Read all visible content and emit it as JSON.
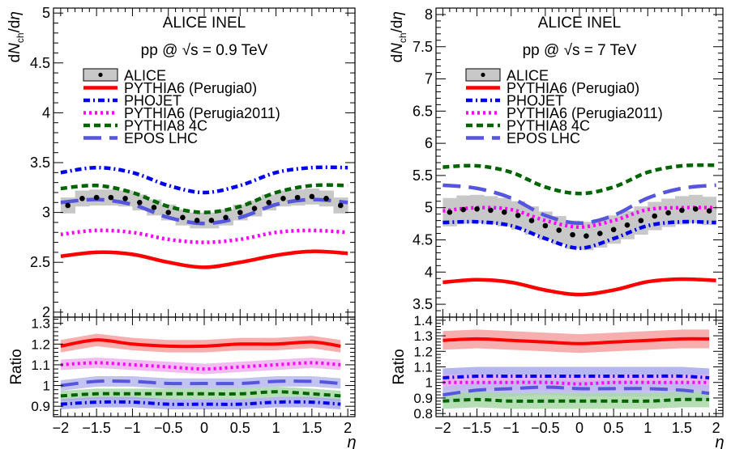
{
  "chart_data": [
    {
      "type": "line",
      "id": "left",
      "header": [
        "ALICE INEL",
        "pp @ √s = 0.9 TeV"
      ],
      "ylabel": "dNch/dη",
      "xlabel": "η",
      "xlim": [
        -2.1,
        2.1
      ],
      "ylim": [
        1.95,
        5.05
      ],
      "ratio_ylim": [
        0.85,
        1.33
      ],
      "ratio_ylabel": "Ratio",
      "xticks": [
        "−2",
        "−1.5",
        "−1",
        "−0.5",
        "0",
        "0.5",
        "1",
        "1.5",
        "2"
      ],
      "xtick_values": [
        -2,
        -1.5,
        -1,
        -0.5,
        0,
        0.5,
        1,
        1.5,
        2
      ],
      "yticks": [
        "2",
        "2.5",
        "3",
        "3.5",
        "4",
        "4.5",
        "5"
      ],
      "ytick_values": [
        2,
        2.5,
        3,
        3.5,
        4,
        4.5,
        5
      ],
      "ratio_yticks": [
        "0.9",
        "1",
        "1.1",
        "1.2",
        "1.3"
      ],
      "ratio_ytick_values": [
        0.9,
        1.0,
        1.1,
        1.2,
        1.3
      ],
      "legend": [
        "ALICE",
        "PYTHIA6 (Perugia0)",
        "PHOJET",
        "PYTHIA6 (Perugia2011)",
        "PYTHIA8 4C",
        "EPOS LHC"
      ],
      "data": {
        "x": [
          -1.9,
          -1.7,
          -1.5,
          -1.3,
          -1.1,
          -0.9,
          -0.7,
          -0.5,
          -0.3,
          -0.1,
          0.1,
          0.3,
          0.5,
          0.7,
          0.9,
          1.1,
          1.3,
          1.5,
          1.7,
          1.9
        ],
        "y": [
          3.07,
          3.14,
          3.15,
          3.15,
          3.14,
          3.1,
          3.05,
          3.0,
          2.95,
          2.92,
          2.92,
          2.95,
          3.0,
          3.04,
          3.1,
          3.14,
          3.15,
          3.16,
          3.14,
          3.07
        ],
        "err": 0.08
      },
      "series": [
        {
          "name": "PYTHIA6 (Perugia0)",
          "color": "#ff0000",
          "style": "solid",
          "x": [
            -2,
            -1.5,
            -1,
            -0.5,
            0,
            0.5,
            1,
            1.5,
            2
          ],
          "y": [
            2.56,
            2.6,
            2.58,
            2.5,
            2.45,
            2.5,
            2.57,
            2.61,
            2.59
          ]
        },
        {
          "name": "PHOJET",
          "color": "#0000ee",
          "style": "dashdot",
          "x": [
            -2,
            -1.5,
            -1,
            -0.5,
            0,
            0.5,
            1,
            1.5,
            2
          ],
          "y": [
            3.4,
            3.45,
            3.4,
            3.27,
            3.2,
            3.27,
            3.4,
            3.45,
            3.45
          ]
        },
        {
          "name": "PYTHIA6 (Perugia2011)",
          "color": "#ff00ff",
          "style": "dotted",
          "x": [
            -2,
            -1.5,
            -1,
            -0.5,
            0,
            0.5,
            1,
            1.5,
            2
          ],
          "y": [
            2.78,
            2.82,
            2.8,
            2.73,
            2.7,
            2.73,
            2.8,
            2.82,
            2.8
          ]
        },
        {
          "name": "PYTHIA8 4C",
          "color": "#006400",
          "style": "dashed",
          "x": [
            -2,
            -1.5,
            -1,
            -0.5,
            0,
            0.5,
            1,
            1.5,
            2
          ],
          "y": [
            3.24,
            3.27,
            3.2,
            3.06,
            3.0,
            3.06,
            3.2,
            3.27,
            3.27
          ]
        },
        {
          "name": "EPOS LHC",
          "color": "#5555dd",
          "style": "longdash",
          "x": [
            -2,
            -1.5,
            -1,
            -0.5,
            0,
            0.5,
            1,
            1.5,
            2
          ],
          "y": [
            3.1,
            3.13,
            3.08,
            2.95,
            2.89,
            2.95,
            3.08,
            3.13,
            3.1
          ]
        }
      ],
      "ratios": [
        {
          "name": "PYTHIA6 (Perugia0)",
          "color": "#ff0000",
          "band": "#f4a0a0",
          "style": "solid",
          "x": [
            -2,
            -1.5,
            -1,
            -0.5,
            0,
            0.5,
            1,
            1.5,
            1.9
          ],
          "y": [
            1.19,
            1.22,
            1.2,
            1.19,
            1.19,
            1.2,
            1.2,
            1.21,
            1.19
          ],
          "err": 0.03
        },
        {
          "name": "PYTHIA6 (Perugia2011)",
          "color": "#ff00ff",
          "band": "#f0b0f0",
          "style": "dotted",
          "x": [
            -2,
            -1.5,
            -1,
            -0.5,
            0,
            0.5,
            1,
            1.5,
            1.9
          ],
          "y": [
            1.1,
            1.11,
            1.1,
            1.09,
            1.08,
            1.09,
            1.1,
            1.11,
            1.1
          ],
          "err": 0.025
        },
        {
          "name": "EPOS LHC",
          "color": "#5555dd",
          "band": "#b8b8ee",
          "style": "longdash",
          "x": [
            -2,
            -1.5,
            -1,
            -0.5,
            0,
            0.5,
            1,
            1.5,
            1.9
          ],
          "y": [
            1.0,
            1.02,
            1.02,
            1.01,
            1.01,
            1.01,
            1.02,
            1.02,
            1.01
          ],
          "err": 0.025
        },
        {
          "name": "PYTHIA8 4C",
          "color": "#006400",
          "band": "#a8d8a8",
          "style": "dashed",
          "x": [
            -2,
            -1.5,
            -1,
            -0.5,
            0,
            0.5,
            1,
            1.5,
            1.9
          ],
          "y": [
            0.95,
            0.96,
            0.96,
            0.96,
            0.96,
            0.96,
            0.97,
            0.96,
            0.95
          ],
          "err": 0.025
        },
        {
          "name": "PHOJET",
          "color": "#0000ee",
          "band": "#a8a8ee",
          "style": "dashdot",
          "x": [
            -2,
            -1.5,
            -1,
            -0.5,
            0,
            0.5,
            1,
            1.5,
            1.9
          ],
          "y": [
            0.91,
            0.92,
            0.92,
            0.91,
            0.91,
            0.91,
            0.92,
            0.92,
            0.91
          ],
          "err": 0.025
        }
      ]
    },
    {
      "type": "line",
      "id": "right",
      "header": [
        "ALICE INEL",
        "pp @ √s = 7 TeV"
      ],
      "ylabel": "dNch/dη",
      "xlabel": "η",
      "xlim": [
        -2.1,
        2.1
      ],
      "ylim": [
        3.3,
        8.1
      ],
      "ratio_ylim": [
        0.78,
        1.42
      ],
      "ratio_ylabel": "Ratio",
      "xticks": [
        "−2",
        "−1.5",
        "−1",
        "−0.5",
        "0",
        "0.5",
        "1",
        "1.5",
        "2"
      ],
      "xtick_values": [
        -2,
        -1.5,
        -1,
        -0.5,
        0,
        0.5,
        1,
        1.5,
        2
      ],
      "yticks": [
        "3.5",
        "4",
        "4.5",
        "5",
        "5.5",
        "6",
        "6.5",
        "7",
        "7.5",
        "8"
      ],
      "ytick_values": [
        3.5,
        4,
        4.5,
        5,
        5.5,
        6,
        6.5,
        7,
        7.5,
        8
      ],
      "ratio_yticks": [
        "0.8",
        "0.9",
        "1",
        "1.1",
        "1.2",
        "1.3",
        "1.4"
      ],
      "ratio_ytick_values": [
        0.8,
        0.9,
        1.0,
        1.1,
        1.2,
        1.3,
        1.4
      ],
      "legend": [
        "ALICE",
        "PYTHIA6 (Perugia0)",
        "PHOJET",
        "PYTHIA6 (Perugia2011)",
        "PYTHIA8 4C",
        "EPOS LHC"
      ],
      "data": {
        "x": [
          -1.9,
          -1.7,
          -1.5,
          -1.3,
          -1.1,
          -0.9,
          -0.7,
          -0.5,
          -0.3,
          -0.1,
          0.1,
          0.3,
          0.5,
          0.7,
          0.9,
          1.1,
          1.3,
          1.5,
          1.7,
          1.9
        ],
        "y": [
          4.93,
          4.97,
          4.98,
          4.96,
          4.93,
          4.88,
          4.8,
          4.72,
          4.65,
          4.58,
          4.56,
          4.6,
          4.66,
          4.73,
          4.8,
          4.87,
          4.92,
          4.96,
          4.98,
          4.95
        ],
        "err": 0.22
      },
      "series": [
        {
          "name": "PYTHIA6 (Perugia0)",
          "color": "#ff0000",
          "style": "solid",
          "x": [
            -2,
            -1.5,
            -1,
            -0.5,
            0,
            0.5,
            1,
            1.5,
            2
          ],
          "y": [
            3.84,
            3.88,
            3.84,
            3.72,
            3.65,
            3.72,
            3.85,
            3.89,
            3.87
          ]
        },
        {
          "name": "PHOJET",
          "color": "#0000ee",
          "style": "dashdot",
          "x": [
            -2,
            -1.5,
            -1,
            -0.5,
            0,
            0.5,
            1,
            1.5,
            2
          ],
          "y": [
            4.77,
            4.78,
            4.72,
            4.52,
            4.37,
            4.52,
            4.72,
            4.78,
            4.77
          ]
        },
        {
          "name": "PYTHIA6 (Perugia2011)",
          "color": "#ff00ff",
          "style": "dotted",
          "x": [
            -2,
            -1.5,
            -1,
            -0.5,
            0,
            0.5,
            1,
            1.5,
            2
          ],
          "y": [
            4.95,
            5.0,
            4.97,
            4.8,
            4.7,
            4.8,
            4.97,
            5.0,
            5.0
          ]
        },
        {
          "name": "PYTHIA8 4C",
          "color": "#006400",
          "style": "dashed",
          "x": [
            -2,
            -1.5,
            -1,
            -0.5,
            0,
            0.5,
            1,
            1.5,
            2
          ],
          "y": [
            5.63,
            5.65,
            5.55,
            5.32,
            5.22,
            5.32,
            5.55,
            5.65,
            5.66
          ]
        },
        {
          "name": "EPOS LHC",
          "color": "#5555dd",
          "style": "longdash",
          "x": [
            -2,
            -1.5,
            -1,
            -0.5,
            0,
            0.5,
            1,
            1.5,
            2
          ],
          "y": [
            5.35,
            5.3,
            5.15,
            4.88,
            4.76,
            4.88,
            5.15,
            5.3,
            5.35
          ]
        }
      ],
      "ratios": [
        {
          "name": "PYTHIA6 (Perugia0)",
          "color": "#ff0000",
          "band": "#f4a0a0",
          "style": "solid",
          "x": [
            -2,
            -1.5,
            -1,
            -0.5,
            0,
            0.5,
            1,
            1.5,
            1.9
          ],
          "y": [
            1.27,
            1.28,
            1.27,
            1.26,
            1.25,
            1.26,
            1.27,
            1.28,
            1.28
          ],
          "err": 0.06
        },
        {
          "name": "PHOJET",
          "color": "#0000ee",
          "band": "#a8a8ee",
          "style": "dashdot",
          "x": [
            -2,
            -1.5,
            -1,
            -0.5,
            0,
            0.5,
            1,
            1.5,
            1.9
          ],
          "y": [
            1.03,
            1.04,
            1.04,
            1.04,
            1.04,
            1.04,
            1.04,
            1.04,
            1.03
          ],
          "err": 0.06
        },
        {
          "name": "PYTHIA6 (Perugia2011)",
          "color": "#ff00ff",
          "band": "#f0b0f0",
          "style": "dotted",
          "x": [
            -2,
            -1.5,
            -1,
            -0.5,
            0,
            0.5,
            1,
            1.5,
            1.9
          ],
          "y": [
            1.0,
            1.0,
            1.0,
            1.0,
            0.99,
            1.0,
            1.0,
            1.0,
            1.0
          ],
          "err": 0.05
        },
        {
          "name": "EPOS LHC",
          "color": "#5555dd",
          "band": "#b8b8ee",
          "style": "longdash",
          "x": [
            -2,
            -1.5,
            -1,
            -0.5,
            0,
            0.5,
            1,
            1.5,
            1.9
          ],
          "y": [
            0.92,
            0.95,
            0.96,
            0.97,
            0.96,
            0.96,
            0.96,
            0.95,
            0.93
          ],
          "err": 0.05
        },
        {
          "name": "PYTHIA8 4C",
          "color": "#006400",
          "band": "#a8d8a8",
          "style": "dashed",
          "x": [
            -2,
            -1.5,
            -1,
            -0.5,
            0,
            0.5,
            1,
            1.5,
            1.9
          ],
          "y": [
            0.88,
            0.89,
            0.88,
            0.88,
            0.88,
            0.88,
            0.88,
            0.89,
            0.89
          ],
          "err": 0.05
        }
      ]
    }
  ]
}
